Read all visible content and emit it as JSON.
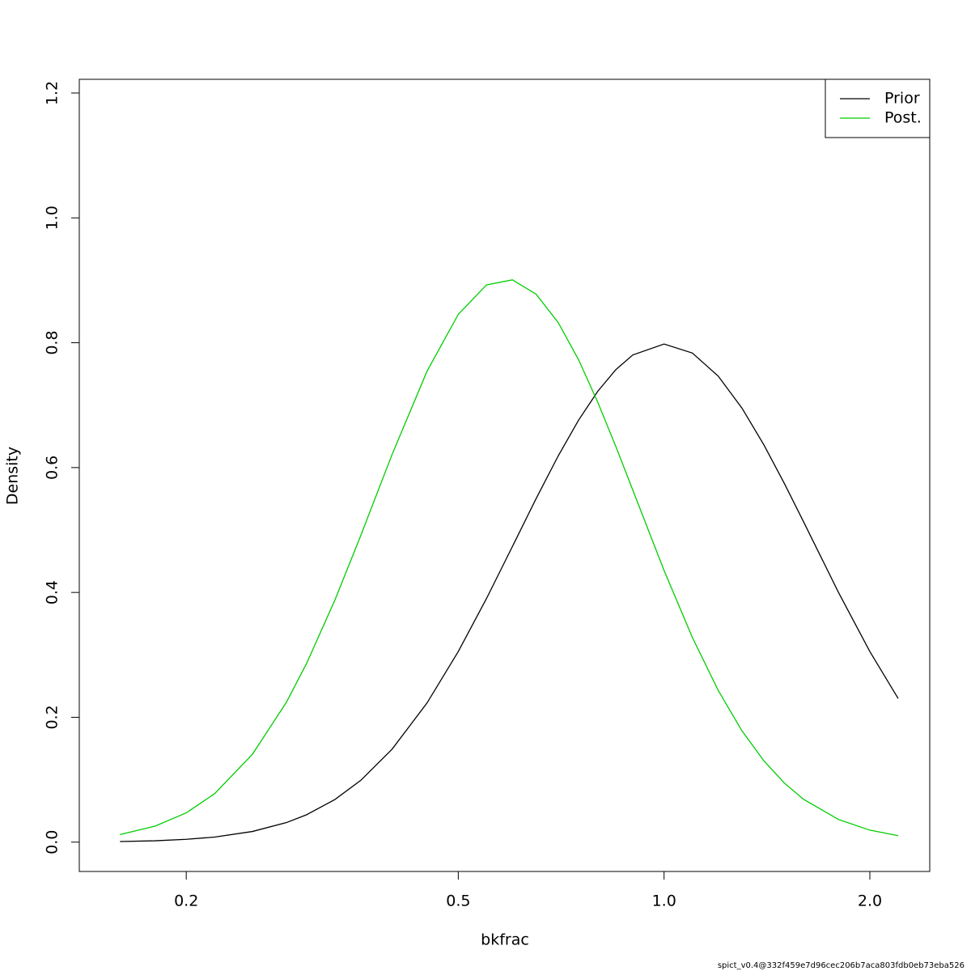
{
  "chart_data": {
    "type": "line",
    "xlabel": "bkfrac",
    "ylabel": "Density",
    "footer": "spict_v0.4@332f459e7d96cec206b7aca803fdb0eb73eba526",
    "xlog": true,
    "x": [
      0.16,
      0.18,
      0.2,
      0.22,
      0.25,
      0.28,
      0.3,
      0.33,
      0.36,
      0.4,
      0.45,
      0.5,
      0.55,
      0.6,
      0.65,
      0.7,
      0.75,
      0.8,
      0.85,
      0.9,
      1.0,
      1.1,
      1.2,
      1.3,
      1.4,
      1.5,
      1.6,
      1.8,
      2.0,
      2.2
    ],
    "series": [
      {
        "name": "Prior",
        "color": "#000000",
        "values": [
          0.00097,
          0.0022,
          0.0045,
          0.0081,
          0.0171,
          0.0312,
          0.0439,
          0.0683,
          0.0989,
          0.1488,
          0.2229,
          0.3053,
          0.3905,
          0.4736,
          0.5505,
          0.6186,
          0.6762,
          0.7223,
          0.7569,
          0.7804,
          0.7979,
          0.7835,
          0.7466,
          0.6953,
          0.6362,
          0.5743,
          0.513,
          0.3998,
          0.3053,
          0.2301
        ]
      },
      {
        "name": "Post.",
        "color": "#00cd00",
        "values": [
          0.0121,
          0.0256,
          0.0469,
          0.0775,
          0.1409,
          0.2234,
          0.2864,
          0.3879,
          0.4911,
          0.6208,
          0.7543,
          0.8455,
          0.8927,
          0.9008,
          0.8777,
          0.8324,
          0.7725,
          0.7045,
          0.6339,
          0.564,
          0.4352,
          0.3279,
          0.2431,
          0.1783,
          0.1301,
          0.0945,
          0.0686,
          0.0362,
          0.0192,
          0.0103
        ]
      }
    ],
    "xlim": [
      0.1395,
      2.447
    ],
    "xticks": [
      0.2,
      0.5,
      {
        "value": 1,
        "label": "1.0"
      },
      {
        "value": 2,
        "label": "2.0"
      }
    ],
    "ylim": [
      -0.047,
      1.222
    ],
    "yticks": [
      {
        "value": 0,
        "label": "0.0"
      },
      0.2,
      0.4,
      0.6,
      0.8,
      {
        "value": 1,
        "label": "1.0"
      },
      1.2
    ],
    "grid": false,
    "legend": "topright"
  }
}
